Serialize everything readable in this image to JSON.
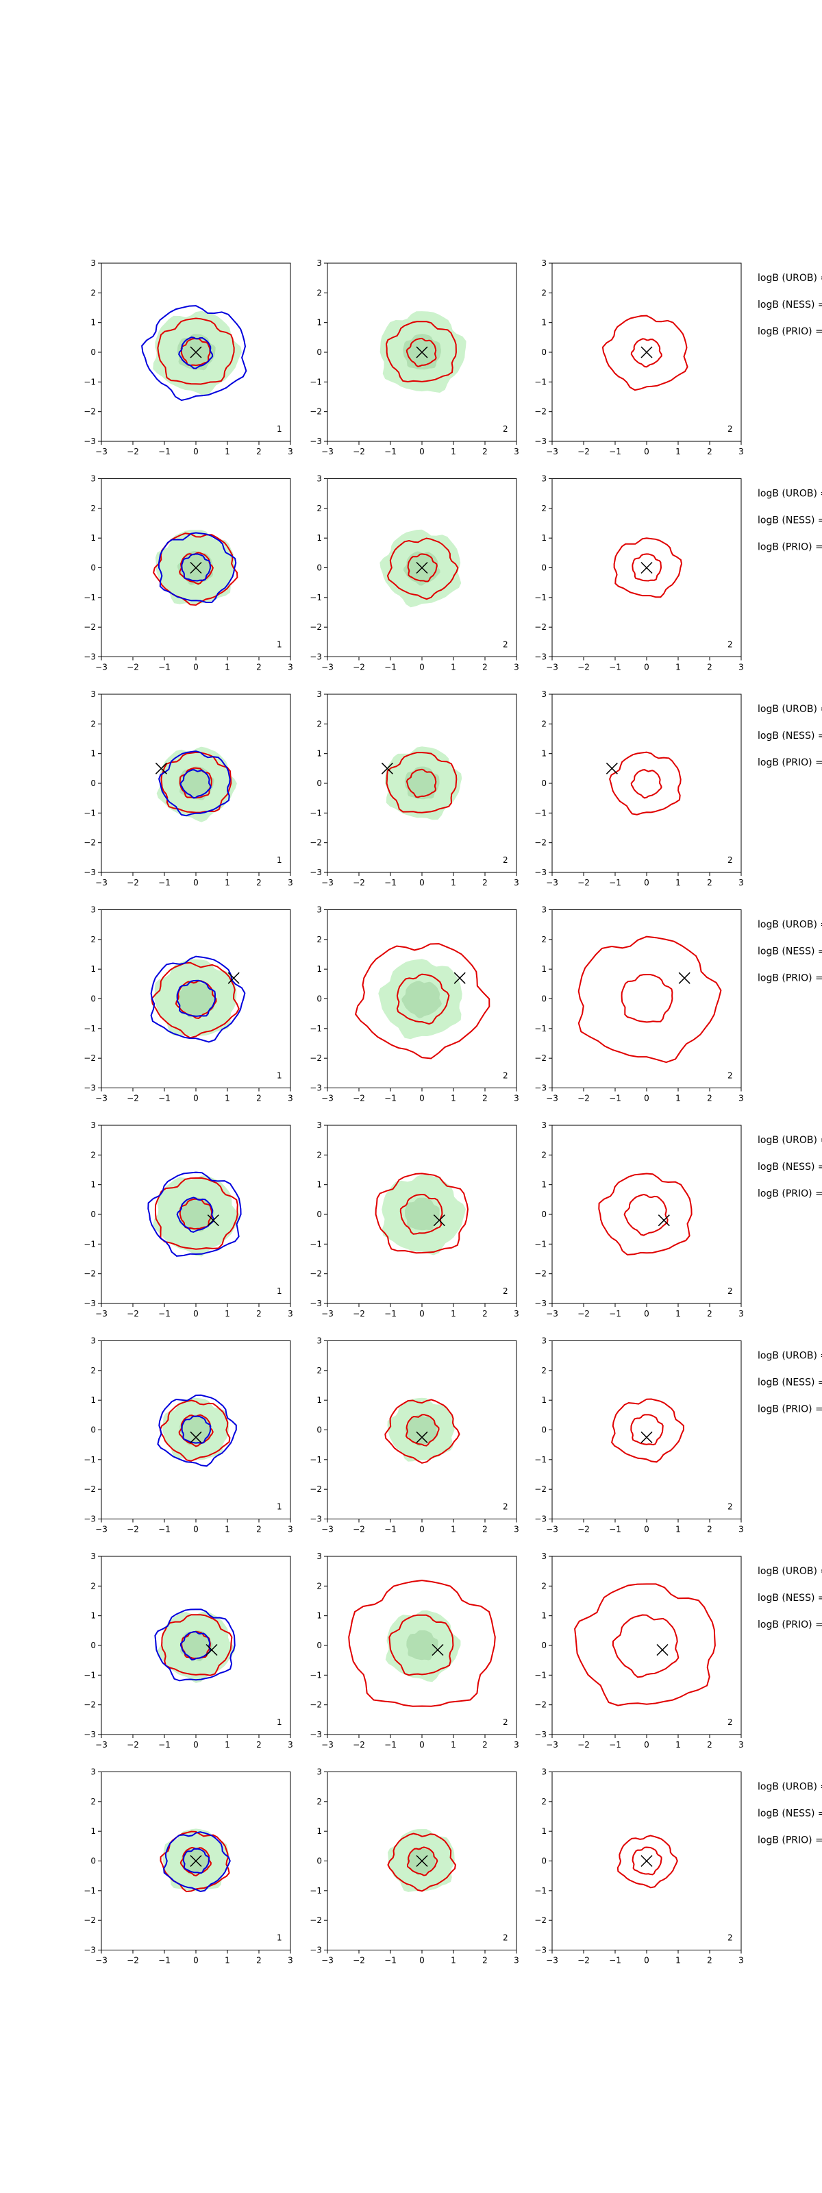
{
  "figure": {
    "logb_labels": [
      "logB (UROB) =",
      "logB (NESS) =",
      "logB (PRIO) ="
    ],
    "colors": {
      "fill": "#ccf2cc",
      "fill_inner": "#b2dfb2",
      "red": "#e00000",
      "blue": "#0000dd",
      "marker": "#000000"
    }
  },
  "chart_data": {
    "type": "contour-grid",
    "rows": 8,
    "columns": 3,
    "xlim": [
      -3,
      3
    ],
    "ylim": [
      -3,
      3
    ],
    "xticks": [
      -3,
      -2,
      -1,
      0,
      1,
      2,
      3
    ],
    "yticks": [
      -3,
      -2,
      -1,
      0,
      1,
      2,
      3
    ],
    "panel_labels": [
      "1",
      "2",
      "2"
    ],
    "grid": false,
    "marker_positions": [
      [
        0,
        0
      ],
      [
        0,
        0
      ],
      [
        -1.1,
        0.5
      ],
      [
        1.2,
        0.7
      ],
      [
        0.55,
        -0.2
      ],
      [
        0,
        -0.25
      ],
      [
        0.5,
        -0.15
      ],
      [
        0,
        0
      ]
    ],
    "contours": [
      {
        "green": [
          1.35,
          0.6
        ],
        "red": [
          1.2,
          0.45
        ],
        "blue": [
          1.6,
          0.5
        ],
        "red2": [
          1.1,
          0.45
        ],
        "red3": [
          1.3,
          0.45
        ]
      },
      {
        "green": [
          1.25,
          0.55
        ],
        "red": [
          1.25,
          0.5
        ],
        "blue": [
          1.2,
          0.45
        ],
        "red2": [
          1.05,
          0.45
        ],
        "red3": [
          1.05,
          0.45
        ]
      },
      {
        "green": [
          1.2,
          0.55
        ],
        "red": [
          1.1,
          0.5
        ],
        "blue": [
          1.1,
          0.45
        ],
        "red2": [
          1.1,
          0.45
        ],
        "red3": [
          1.1,
          0.45
        ]
      },
      {
        "green": [
          1.3,
          0.6
        ],
        "red": [
          1.3,
          0.6
        ],
        "blue": [
          1.45,
          0.6
        ],
        "red2": [
          2.0,
          0.8
        ],
        "red3": [
          2.2,
          0.8
        ]
      },
      {
        "green": [
          1.3,
          0.55
        ],
        "red": [
          1.3,
          0.5
        ],
        "blue": [
          1.45,
          0.55
        ],
        "red2": [
          1.45,
          0.65
        ],
        "red3": [
          1.45,
          0.65
        ]
      },
      {
        "green": [
          1.05,
          0.5
        ],
        "red": [
          1.05,
          0.5
        ],
        "blue": [
          1.2,
          0.45
        ],
        "red2": [
          1.1,
          0.5
        ],
        "red3": [
          1.1,
          0.5
        ]
      },
      {
        "green": [
          1.15,
          0.5
        ],
        "red": [
          1.1,
          0.45
        ],
        "blue": [
          1.25,
          0.45
        ],
        "red2": [
          2.3,
          1.0
        ],
        "red3": [
          2.2,
          1.0
        ]
      },
      {
        "green": [
          1.05,
          0.45
        ],
        "red": [
          1.05,
          0.45
        ],
        "blue": [
          1.0,
          0.4
        ],
        "red2": [
          1.0,
          0.45
        ],
        "red3": [
          0.9,
          0.45
        ]
      }
    ]
  }
}
